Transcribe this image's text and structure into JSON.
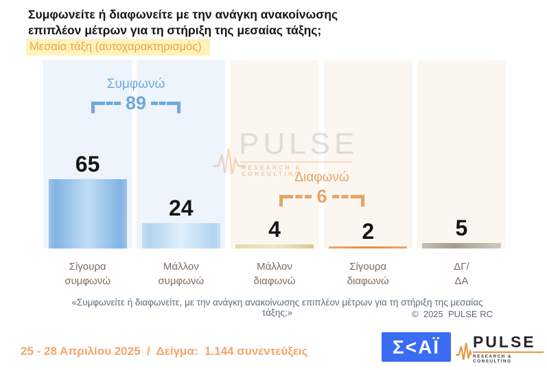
{
  "title": {
    "line1": "Συμφωνείτε ή διαφωνείτε με την ανάγκη ανακοίνωσης",
    "line2": "επιπλέον μέτρων για τη στήριξη της μεσαίας τάξης;"
  },
  "subtitle": "Μεσαία τάξη (αυτοχαρακτηρισμός)",
  "chart_data": {
    "type": "bar",
    "categories": [
      "Σίγουρα συμφωνώ",
      "Μάλλον συμφωνώ",
      "Μάλλον διαφωνώ",
      "Σίγουρα διαφωνώ",
      "ΔΓ/ΔΑ"
    ],
    "category_lines": [
      [
        "Σίγουρα",
        "συμφωνώ"
      ],
      [
        "Μάλλον",
        "συμφωνώ"
      ],
      [
        "Μάλλον",
        "διαφωνώ"
      ],
      [
        "Σίγουρα",
        "διαφωνώ"
      ],
      [
        "ΔΓ/",
        "ΔΑ"
      ]
    ],
    "values": [
      65,
      24,
      4,
      2,
      5
    ],
    "value_labels": [
      "65",
      "24",
      "4",
      "2",
      "5"
    ],
    "ylim": [
      0,
      100
    ],
    "grid": false,
    "legend": false,
    "bar_colors": [
      "#84b6e4",
      "#b9d8f2",
      "#e2d3a1",
      "#e49055",
      "#b3ab9d"
    ],
    "groups": [
      {
        "label": "Συμφωνώ",
        "value": "89",
        "color": "#6fa8dc",
        "spans": [
          "Σίγουρα συμφωνώ",
          "Μάλλον συμφωνώ"
        ]
      },
      {
        "label": "Διαφωνώ",
        "value": "6",
        "color": "#e8a469",
        "spans": [
          "Μάλλον διαφωνώ",
          "Σίγουρα διαφωνώ"
        ]
      }
    ]
  },
  "watermark": {
    "name": "PULSE",
    "tagline": "RESEARCH & CONSULTING"
  },
  "footnote": {
    "quote": "«Συμφωνείτε ή διαφωνείτε, με την ανάγκη ανακοίνωσης επιπλέον μέτρων για τη στήριξη της μεσαίας τάξης;»",
    "copyright": "©  2025  PULSE RC"
  },
  "footer": {
    "date_sample": "25 - 28 Απριλίου 2025  /  Δείγμα:  1.144 συνεντεύξεις",
    "skai_logo_text": "Σ<ΑΪ",
    "pulse_logo_name": "PULSE",
    "pulse_logo_tagline": "RESEARCH & CONSULTING"
  },
  "colors": {
    "agree_accent": "#6fa8dc",
    "disagree_accent": "#e8a469",
    "subtitle_text": "#f2a24b",
    "subtitle_highlight": "#fdf3bb",
    "footer_date_text": "#f4a469",
    "skai_blue": "#3b6cf3",
    "panel_blue": "#edf4fc",
    "panel_cream": "#fbf6ef"
  }
}
